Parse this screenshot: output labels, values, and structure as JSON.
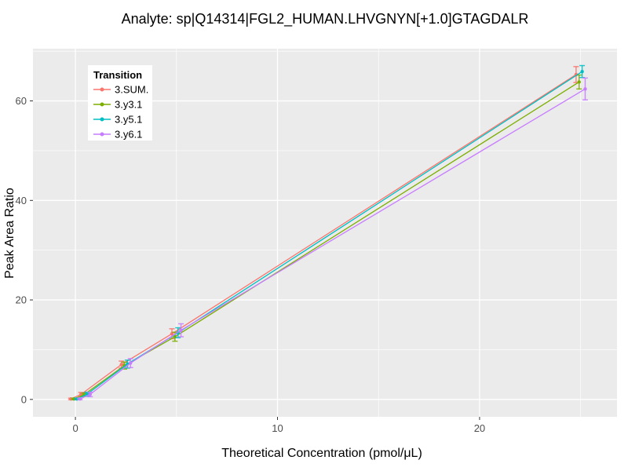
{
  "title": "Analyte: sp|Q14314|FGL2_HUMAN.LHVGNYN[+1.0]GTAGDALR",
  "chart_data": {
    "type": "line",
    "title": "Analyte: sp|Q14314|FGL2_HUMAN.LHVGNYN[+1.0]GTAGDALR",
    "xlabel": "Theoretical Concentration (pmol/μL)",
    "ylabel": "Peak Area Ratio",
    "xlim": [
      -2.1,
      26.8
    ],
    "ylim": [
      -3.5,
      70.5
    ],
    "x_major_ticks": [
      0,
      10,
      20
    ],
    "x_minor_ticks": [
      5,
      15,
      25
    ],
    "y_major_ticks": [
      0,
      20,
      40,
      60
    ],
    "y_minor_ticks": [
      10,
      30,
      50,
      70
    ],
    "grid": "on",
    "panel_bg": "#EBEBEB",
    "grid_color": "#FFFFFF",
    "legend_title": "Transition",
    "legend_position": "top-left-inside",
    "x": [
      0,
      0.5,
      2.5,
      5,
      25
    ],
    "series": [
      {
        "name": "3.SUM.",
        "color": "#F8766D",
        "values": [
          0.1,
          1.0,
          7.0,
          13.2,
          65.3
        ],
        "errors": [
          0.15,
          0.4,
          0.7,
          1.0,
          1.6
        ]
      },
      {
        "name": "3.y3.1",
        "color": "#7CAE00",
        "values": [
          0.1,
          0.95,
          6.8,
          12.6,
          63.8
        ],
        "errors": [
          0.15,
          0.35,
          0.7,
          0.9,
          1.4
        ]
      },
      {
        "name": "3.y5.1",
        "color": "#00BFC4",
        "values": [
          0.1,
          1.05,
          7.1,
          13.4,
          65.9
        ],
        "errors": [
          0.15,
          0.4,
          0.8,
          1.0,
          1.2
        ]
      },
      {
        "name": "3.y6.1",
        "color": "#C77CFF",
        "values": [
          0.1,
          1.0,
          7.3,
          13.9,
          62.4
        ],
        "errors": [
          0.15,
          0.45,
          0.9,
          1.3,
          2.2
        ]
      }
    ]
  }
}
